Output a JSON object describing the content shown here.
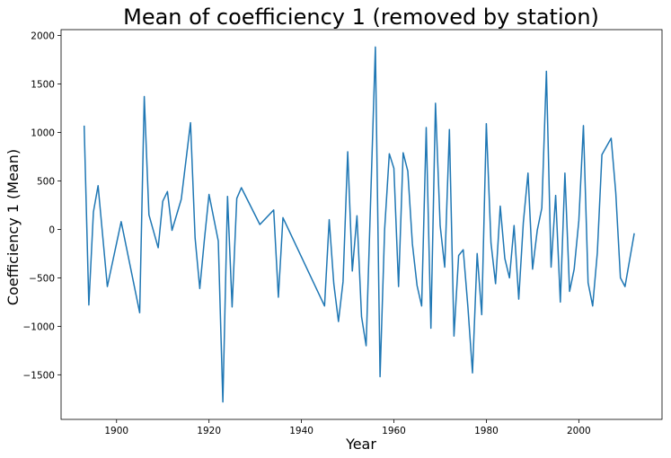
{
  "chart_data": {
    "type": "line",
    "title": "Mean of coefficiency 1 (removed by station)",
    "xlabel": "Year",
    "ylabel": "Coefficiency 1 (Mean)",
    "xlim": [
      1888,
      2018
    ],
    "ylim": [
      -1960,
      2060
    ],
    "xticks": [
      1900,
      1920,
      1940,
      1960,
      1980,
      2000
    ],
    "yticks": [
      -1500,
      -1000,
      -500,
      0,
      500,
      1000,
      1500,
      2000
    ],
    "xtick_labels": [
      "1900",
      "1920",
      "1940",
      "1960",
      "1980",
      "2000"
    ],
    "ytick_labels": [
      "−1500",
      "−1000",
      "−500",
      "0",
      "500",
      "1000",
      "1500",
      "2000"
    ],
    "grid": false,
    "line_color": "#1f77b4",
    "series": [
      {
        "x": [
          1893,
          1894,
          1895,
          1896,
          1898,
          1901,
          1905,
          1906,
          1907,
          1909,
          1910,
          1911,
          1912,
          1914,
          1916,
          1917,
          1918,
          1919,
          1920,
          1922,
          1923,
          1924,
          1925,
          1926,
          1927,
          1931,
          1934,
          1935,
          1936,
          1945,
          1946,
          1947,
          1948,
          1949,
          1950,
          1951,
          1952,
          1953,
          1954,
          1956,
          1957,
          1958,
          1959,
          1960,
          1961,
          1962,
          1963,
          1964,
          1965,
          1966,
          1967,
          1968,
          1969,
          1970,
          1971,
          1972,
          1973,
          1974,
          1975,
          1976,
          1977,
          1978,
          1979,
          1980,
          1981,
          1982,
          1983,
          1984,
          1985,
          1986,
          1987,
          1988,
          1989,
          1990,
          1991,
          1992,
          1993,
          1994,
          1995,
          1996,
          1997,
          1998,
          1999,
          2000,
          2001,
          2002,
          2003,
          2004,
          2005,
          2007,
          2008,
          2009,
          2010,
          2012
        ],
        "y": [
          1070,
          -780,
          180,
          450,
          -590,
          80,
          -860,
          1370,
          150,
          -190,
          290,
          390,
          -10,
          310,
          1100,
          -90,
          -610,
          -110,
          360,
          -120,
          -1780,
          340,
          -800,
          320,
          430,
          50,
          200,
          -700,
          120,
          -790,
          100,
          -560,
          -950,
          -540,
          800,
          -430,
          140,
          -900,
          -1200,
          1880,
          -1520,
          0,
          780,
          630,
          -590,
          790,
          600,
          -150,
          -580,
          -790,
          1050,
          -1020,
          1300,
          40,
          -390,
          1030,
          -1100,
          -270,
          -210,
          -800,
          -1480,
          -250,
          -880,
          1090,
          -140,
          -560,
          240,
          -300,
          -500,
          40,
          -720,
          70,
          580,
          -410,
          -10,
          220,
          1630,
          -390,
          350,
          -750,
          580,
          -640,
          -410,
          90,
          1070,
          -550,
          -790,
          -240,
          770,
          940,
          380,
          -500,
          -590,
          -40
        ]
      }
    ]
  }
}
